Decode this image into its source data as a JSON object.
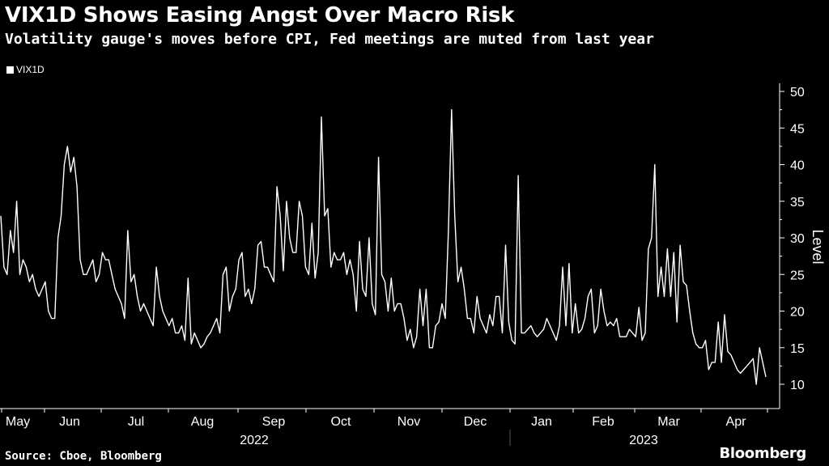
{
  "header": {
    "title": "VIX1D Shows Easing Angst Over Macro Risk",
    "subtitle": "Volatility gauge's moves before CPI, Fed meetings are muted from last year"
  },
  "footer": {
    "source": "Source: Cboe, Bloomberg",
    "brand": "Bloomberg"
  },
  "colors": {
    "background": "#000000",
    "line": "#ffffff",
    "axis": "#ffffff"
  },
  "chart_data": {
    "type": "line",
    "title": "VIX1D Shows Easing Angst Over Macro Risk",
    "subtitle": "Volatility gauge's moves before CPI, Fed meetings are muted from last year",
    "xlabel": "",
    "ylabel": "Level",
    "y_axis_side": "right",
    "ylim": [
      7,
      51
    ],
    "yticks": [
      10,
      15,
      20,
      25,
      30,
      35,
      40,
      45,
      50
    ],
    "grid": false,
    "legend": {
      "position": "top-left",
      "entries": [
        "VIX1D"
      ]
    },
    "x_axis": {
      "months": [
        "May",
        "Jun",
        "Jul",
        "Aug",
        "Sep",
        "Oct",
        "Nov",
        "Dec",
        "Jan",
        "Feb",
        "Mar",
        "Apr"
      ],
      "years": [
        "2022",
        "2023"
      ]
    },
    "series": [
      {
        "name": "VIX1D",
        "values": [
          33,
          26,
          25,
          31,
          28,
          35,
          25,
          27,
          26,
          24,
          25,
          23,
          22,
          23,
          24,
          20,
          19,
          19,
          30,
          33,
          40,
          42.5,
          39,
          41,
          37,
          27,
          25,
          25,
          26,
          27,
          24,
          25,
          28,
          27,
          27,
          25,
          23,
          22,
          21,
          19,
          31,
          24,
          25,
          22,
          20,
          21,
          20,
          19,
          18,
          26,
          22,
          20,
          19,
          18,
          19,
          17,
          17,
          18,
          16,
          24.5,
          15.5,
          17,
          16,
          15,
          15.5,
          16.5,
          17,
          18,
          19,
          17,
          25,
          26,
          20,
          22,
          23,
          27,
          28,
          22,
          23,
          21,
          23,
          29,
          29.5,
          26,
          26,
          25,
          24,
          37,
          33,
          25.5,
          35,
          30,
          28,
          28,
          35,
          33,
          26,
          25,
          32,
          24.5,
          28,
          46.5,
          33,
          34,
          26,
          28,
          27,
          27,
          28,
          25,
          27,
          25,
          20,
          29.5,
          23,
          22,
          30,
          21,
          19.5,
          41,
          25,
          24,
          20,
          24.5,
          20,
          21,
          21,
          19,
          16,
          17.5,
          15,
          16.5,
          23,
          18,
          23,
          15,
          15,
          18,
          18.5,
          21,
          19,
          31,
          47.5,
          33,
          24,
          26,
          23,
          19,
          19,
          17,
          22,
          19,
          18,
          17,
          19.5,
          18,
          22,
          22,
          17,
          29,
          18.5,
          16,
          15.5,
          38.5,
          17,
          17,
          17.5,
          18,
          17,
          16.5,
          17,
          17.5,
          19,
          18,
          17,
          16,
          18,
          26,
          18,
          26.5,
          17,
          21,
          17,
          17.5,
          19,
          22,
          23,
          17,
          18,
          23,
          20,
          18,
          18.5,
          18,
          19,
          16.5,
          16.5,
          16.5,
          17.5,
          17,
          16.5,
          20.5,
          16,
          17,
          28.5,
          30,
          40,
          22,
          26,
          22,
          28.5,
          22,
          28,
          18.5,
          29,
          24,
          23.5,
          20,
          17,
          15.5,
          15,
          15,
          16,
          12,
          13,
          13,
          18.5,
          13,
          19.5,
          14.5,
          14,
          13,
          12,
          11.5,
          12,
          12.5,
          13,
          13.5,
          10,
          15,
          13,
          11
        ]
      }
    ]
  }
}
